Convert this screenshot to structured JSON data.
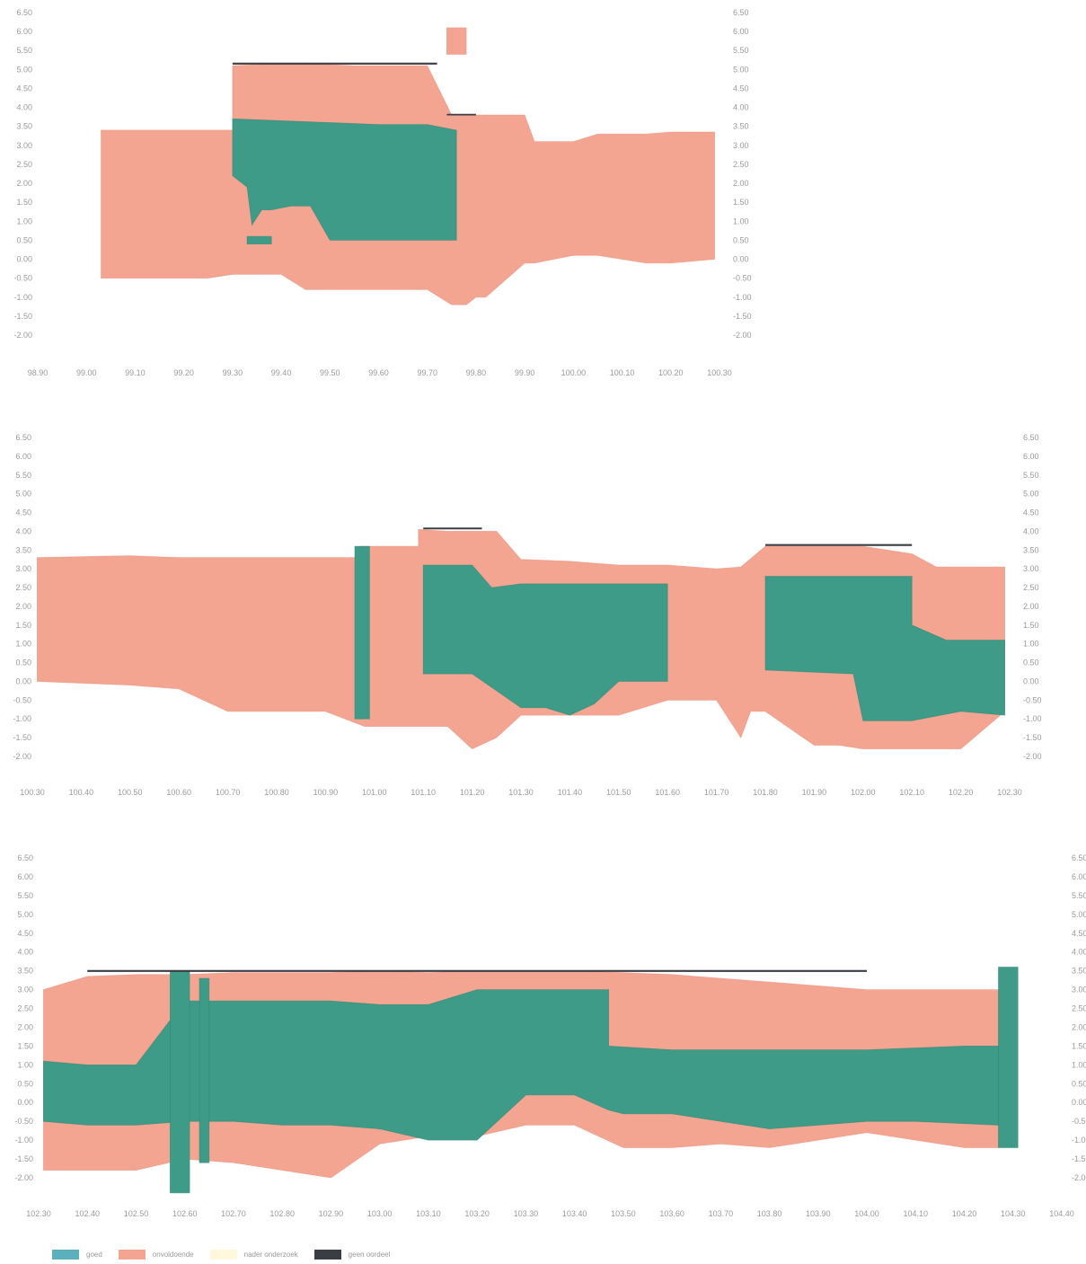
{
  "colors": {
    "goed": "#3e9b87",
    "onvoldoende": "#f4a592",
    "nader_onderzoek": "#fff3c2",
    "geen_oordeel": "#3a3d44",
    "tick_text": "#9a9a9a"
  },
  "chart_data": [
    {
      "type": "area",
      "xlim": [
        98.9,
        100.3
      ],
      "ylim": [
        -2.0,
        6.5
      ],
      "x_ticks": [
        "98.90",
        "99.00",
        "99.10",
        "99.20",
        "99.30",
        "99.40",
        "99.50",
        "99.60",
        "99.70",
        "99.80",
        "99.90",
        "100.00",
        "100.10",
        "100.20",
        "100.30"
      ],
      "y_ticks_left": [
        "6.50",
        "6.00",
        "5.50",
        "5.00",
        "4.50",
        "4.00",
        "3.50",
        "3.00",
        "2.50",
        "2.00",
        "1.50",
        "1.00",
        "0.50",
        "0.00",
        "-0.50",
        "-1.00",
        "-1.50",
        "-2.00"
      ],
      "y_ticks_right": [
        "6.50",
        "6.00",
        "5.50",
        "5.00",
        "4.50",
        "4.00",
        "3.50",
        "3.00",
        "2.50",
        "2.00",
        "1.50",
        "1.00",
        "0.50",
        "0.00",
        "-0.50",
        "-1.00",
        "-1.50",
        "-2.00"
      ],
      "regions": [
        {
          "class": "onvoldoende",
          "x": [
            99.03,
            99.18,
            99.25,
            99.3,
            99.3,
            99.4,
            99.45,
            99.55,
            99.62,
            99.7,
            99.75,
            99.8,
            99.82,
            99.9,
            99.92,
            100.0,
            100.05,
            100.15,
            100.2,
            100.25,
            100.29,
            100.29,
            100.2,
            100.15,
            100.05,
            100.0,
            99.92,
            99.9,
            99.82,
            99.8,
            99.78,
            99.75,
            99.7,
            99.62,
            99.55,
            99.45,
            99.4,
            99.3,
            99.25,
            99.18,
            99.03
          ],
          "y": [
            3.4,
            3.4,
            3.4,
            3.4,
            5.1,
            5.15,
            5.15,
            5.1,
            5.1,
            5.1,
            3.8,
            3.8,
            3.8,
            3.8,
            3.1,
            3.1,
            3.3,
            3.3,
            3.35,
            3.35,
            3.35,
            0.0,
            -0.1,
            -0.1,
            0.1,
            0.1,
            -0.1,
            -0.1,
            -1.0,
            -1.0,
            -1.2,
            -1.2,
            -0.8,
            -0.8,
            -0.8,
            -0.8,
            -0.4,
            -0.4,
            -0.5,
            -0.5,
            -0.5
          ]
        },
        {
          "class": "goed",
          "x": [
            99.3,
            99.5,
            99.6,
            99.7,
            99.76,
            99.76,
            99.7,
            99.6,
            99.5,
            99.46,
            99.42,
            99.38,
            99.36,
            99.34,
            99.33,
            99.3
          ],
          "y": [
            3.7,
            3.6,
            3.55,
            3.55,
            3.4,
            0.5,
            0.5,
            0.5,
            0.5,
            1.4,
            1.4,
            1.3,
            1.3,
            0.9,
            1.9,
            2.2
          ]
        },
        {
          "class": "goed",
          "x": [
            99.33,
            99.38,
            99.38,
            99.33
          ],
          "y": [
            0.6,
            0.6,
            0.4,
            0.4
          ]
        },
        {
          "class": "onvoldoende",
          "x": [
            99.74,
            99.78,
            99.78,
            99.74
          ],
          "y": [
            6.1,
            6.1,
            5.4,
            5.4
          ]
        },
        {
          "class": "geen_oordeel",
          "x": [
            99.3,
            99.72,
            99.72,
            99.3
          ],
          "y": [
            5.18,
            5.18,
            5.13,
            5.13
          ]
        },
        {
          "class": "geen_oordeel",
          "x": [
            99.74,
            99.8,
            99.8,
            99.74
          ],
          "y": [
            3.83,
            3.83,
            3.79,
            3.79
          ]
        }
      ]
    },
    {
      "type": "area",
      "xlim": [
        100.3,
        102.3
      ],
      "ylim": [
        -2.0,
        6.5
      ],
      "x_ticks": [
        "100.30",
        "100.40",
        "100.50",
        "100.60",
        "100.70",
        "100.80",
        "100.90",
        "101.00",
        "101.10",
        "101.20",
        "101.30",
        "101.40",
        "101.50",
        "101.60",
        "101.70",
        "101.80",
        "101.90",
        "102.00",
        "102.10",
        "102.20",
        "102.30"
      ],
      "y_ticks_left": [
        "6.50",
        "6.00",
        "5.50",
        "5.00",
        "4.50",
        "4.00",
        "3.50",
        "3.00",
        "2.50",
        "2.00",
        "1.50",
        "1.00",
        "0.50",
        "0.00",
        "-0.50",
        "-1.00",
        "-1.50",
        "-2.00"
      ],
      "y_ticks_right": [
        "6.50",
        "6.00",
        "5.50",
        "5.00",
        "4.50",
        "4.00",
        "3.50",
        "3.00",
        "2.50",
        "2.00",
        "1.50",
        "1.00",
        "0.50",
        "0.00",
        "-0.50",
        "-1.00",
        "-1.50",
        "-2.00"
      ],
      "regions": [
        {
          "class": "onvoldoende",
          "x": [
            100.31,
            100.5,
            100.6,
            100.7,
            100.8,
            100.9,
            100.97,
            100.97,
            101.0,
            101.09,
            101.09,
            101.15,
            101.25,
            101.3,
            101.4,
            101.5,
            101.6,
            101.7,
            101.75,
            101.8,
            101.9,
            102.0,
            102.1,
            102.15,
            102.29,
            102.29,
            102.2,
            102.1,
            102.0,
            101.95,
            101.9,
            101.8,
            101.77,
            101.75,
            101.7,
            101.6,
            101.5,
            101.4,
            101.3,
            101.25,
            101.2,
            101.15,
            101.09,
            101.0,
            100.98,
            100.9,
            100.8,
            100.7,
            100.6,
            100.5,
            100.31
          ],
          "y": [
            3.3,
            3.35,
            3.3,
            3.3,
            3.3,
            3.3,
            3.3,
            3.6,
            3.6,
            3.6,
            4.05,
            4.0,
            4.0,
            3.25,
            3.2,
            3.1,
            3.1,
            3.0,
            3.05,
            3.6,
            3.6,
            3.6,
            3.4,
            3.05,
            3.05,
            -0.8,
            -1.8,
            -1.8,
            -1.8,
            -1.7,
            -1.7,
            -0.8,
            -0.8,
            -1.5,
            -0.5,
            -0.5,
            -0.9,
            -0.9,
            -0.9,
            -1.5,
            -1.8,
            -1.2,
            -1.2,
            -1.2,
            -1.2,
            -0.8,
            -0.8,
            -0.8,
            -0.2,
            -0.1,
            0.0
          ]
        },
        {
          "class": "goed",
          "x": [
            100.96,
            100.99,
            100.99,
            100.96
          ],
          "y": [
            3.6,
            3.6,
            -1.0,
            -1.0
          ]
        },
        {
          "class": "goed",
          "x": [
            101.1,
            101.2,
            101.24,
            101.3,
            101.45,
            101.6,
            101.6,
            101.5,
            101.45,
            101.4,
            101.35,
            101.3,
            101.2,
            101.1
          ],
          "y": [
            3.1,
            3.1,
            2.5,
            2.6,
            2.6,
            2.6,
            0.0,
            0.0,
            -0.6,
            -0.9,
            -0.7,
            -0.7,
            0.2,
            0.2
          ]
        },
        {
          "class": "goed",
          "x": [
            101.8,
            101.98,
            101.98,
            102.1,
            102.1,
            102.17,
            102.29,
            102.29,
            102.2,
            102.1,
            102.0,
            101.98,
            101.8
          ],
          "y": [
            2.8,
            2.8,
            2.8,
            2.8,
            1.5,
            1.1,
            1.1,
            -0.9,
            -0.8,
            -1.05,
            -1.05,
            0.2,
            0.3
          ]
        },
        {
          "class": "geen_oordeel",
          "x": [
            101.1,
            101.22,
            101.22,
            101.1
          ],
          "y": [
            4.1,
            4.1,
            4.05,
            4.05
          ]
        },
        {
          "class": "geen_oordeel",
          "x": [
            101.8,
            102.1,
            102.1,
            101.8
          ],
          "y": [
            3.66,
            3.66,
            3.61,
            3.61
          ]
        }
      ]
    },
    {
      "type": "area",
      "xlim": [
        102.3,
        104.4
      ],
      "ylim": [
        -2.0,
        6.5
      ],
      "x_ticks": [
        "102.30",
        "102.40",
        "102.50",
        "102.60",
        "102.70",
        "102.80",
        "102.90",
        "103.00",
        "103.10",
        "103.20",
        "103.30",
        "103.40",
        "103.50",
        "103.60",
        "103.70",
        "103.80",
        "103.90",
        "104.00",
        "104.10",
        "104.20",
        "104.30",
        "104.40"
      ],
      "y_ticks_left": [
        "6.50",
        "6.00",
        "5.50",
        "5.00",
        "4.50",
        "4.00",
        "3.50",
        "3.00",
        "2.50",
        "2.00",
        "1.50",
        "1.00",
        "0.50",
        "0.00",
        "-0.50",
        "-1.00",
        "-1.50",
        "-2.00"
      ],
      "y_ticks_right": [
        "6.50",
        "6.00",
        "5.50",
        "5.00",
        "4.50",
        "4.00",
        "3.50",
        "3.00",
        "2.50",
        "2.00",
        "1.50",
        "1.00",
        "0.50",
        "0.00",
        "-0.50",
        "-1.00",
        "-1.50",
        "-2.00"
      ],
      "regions": [
        {
          "class": "onvoldoende",
          "x": [
            102.31,
            102.4,
            102.5,
            102.6,
            102.7,
            102.8,
            102.9,
            103.0,
            103.1,
            103.2,
            103.3,
            103.4,
            103.5,
            103.6,
            103.7,
            103.8,
            103.9,
            104.0,
            104.1,
            104.2,
            104.27,
            104.27,
            104.2,
            104.1,
            104.0,
            103.9,
            103.8,
            103.7,
            103.6,
            103.5,
            103.4,
            103.3,
            103.2,
            103.1,
            103.0,
            102.9,
            102.8,
            102.7,
            102.6,
            102.5,
            102.4,
            102.31
          ],
          "y": [
            3.0,
            3.35,
            3.4,
            3.4,
            3.45,
            3.45,
            3.45,
            3.5,
            3.45,
            3.5,
            3.5,
            3.5,
            3.45,
            3.4,
            3.3,
            3.2,
            3.1,
            3.0,
            3.0,
            3.0,
            3.0,
            -1.2,
            -1.2,
            -1.0,
            -0.8,
            -1.0,
            -1.2,
            -1.1,
            -1.2,
            -1.2,
            -0.6,
            -0.6,
            -0.9,
            -0.9,
            -1.1,
            -2.0,
            -1.8,
            -1.6,
            -1.5,
            -1.8,
            -1.8,
            -1.8
          ]
        },
        {
          "class": "goed",
          "x": [
            102.31,
            102.4,
            102.5,
            102.6,
            102.7,
            102.8,
            102.9,
            103.0,
            103.1,
            103.2,
            103.3,
            103.4,
            103.47,
            103.47,
            103.6,
            103.8,
            104.0,
            104.2,
            104.27,
            104.27,
            104.1,
            104.0,
            103.8,
            103.6,
            103.5,
            103.47,
            103.4,
            103.3,
            103.2,
            103.1,
            103.0,
            102.9,
            102.8,
            102.7,
            102.6,
            102.5,
            102.4,
            102.31
          ],
          "y": [
            1.1,
            1.0,
            1.0,
            2.7,
            2.7,
            2.7,
            2.7,
            2.6,
            2.6,
            3.0,
            3.0,
            3.0,
            3.0,
            1.5,
            1.4,
            1.4,
            1.4,
            1.5,
            1.5,
            -0.6,
            -0.5,
            -0.5,
            -0.7,
            -0.3,
            -0.3,
            -0.2,
            0.2,
            0.2,
            -1.0,
            -1.0,
            -0.7,
            -0.6,
            -0.6,
            -0.5,
            -0.5,
            -0.6,
            -0.6,
            -0.5
          ]
        },
        {
          "class": "goed",
          "x": [
            102.57,
            102.61,
            102.61,
            102.57
          ],
          "y": [
            3.5,
            3.5,
            -2.4,
            -2.4
          ]
        },
        {
          "class": "goed",
          "x": [
            102.63,
            102.65,
            102.65,
            102.63
          ],
          "y": [
            3.3,
            3.3,
            -1.6,
            -1.6
          ]
        },
        {
          "class": "goed",
          "x": [
            104.27,
            104.31,
            104.31,
            104.27
          ],
          "y": [
            3.6,
            3.6,
            -1.2,
            -1.2
          ]
        },
        {
          "class": "geen_oordeel",
          "x": [
            102.4,
            104.0,
            104.0,
            102.4
          ],
          "y": [
            3.52,
            3.52,
            3.47,
            3.47
          ]
        }
      ]
    }
  ],
  "legend": [
    {
      "key": "goed",
      "label": "goed"
    },
    {
      "key": "onvoldoende",
      "label": "onvoldoende"
    },
    {
      "key": "nader_onderzoek",
      "label": "nader onderzoek"
    },
    {
      "key": "geen_oordeel",
      "label": "geen oordeel"
    }
  ]
}
